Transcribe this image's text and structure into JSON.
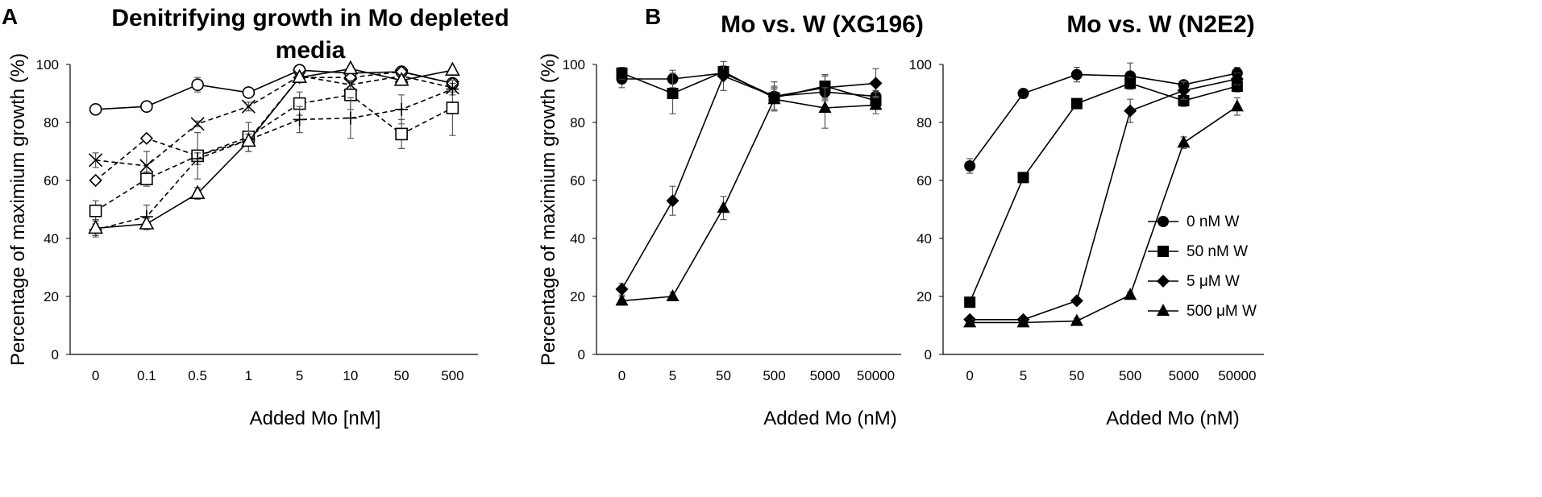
{
  "panel_labels": {
    "a": "A",
    "b": "B"
  },
  "chart_data": [
    {
      "id": "A",
      "type": "line",
      "title_lines": [
        "Denitrifying growth in Mo depleted",
        "media"
      ],
      "xlabel": "Added Mo [nM]",
      "ylabel": "Percentage of maximium growth (%)",
      "categories": [
        "0",
        "0.1",
        "0.5",
        "1",
        "5",
        "10",
        "50",
        "500"
      ],
      "ylim": [
        0,
        100
      ],
      "yticks": [
        0,
        20,
        40,
        60,
        80,
        100
      ],
      "series": [
        {
          "name": "circle",
          "marker": "circle-open",
          "line": "solid",
          "values": [
            84.5,
            85.5,
            93,
            90.3,
            98,
            97,
            97.5,
            93.5
          ],
          "errors": [
            0.5,
            1.5,
            2.5,
            0.5,
            0.5,
            1,
            1,
            1
          ]
        },
        {
          "name": "cross",
          "marker": "x",
          "line": "dashed",
          "values": [
            67,
            65,
            79.5,
            85.5,
            96,
            93,
            96,
            92
          ],
          "errors": [
            2.5,
            5,
            1,
            1.5,
            1,
            2,
            2,
            1.5
          ]
        },
        {
          "name": "diamond",
          "marker": "diamond-open",
          "line": "dashed",
          "values": [
            60,
            74.5,
            68.5,
            74,
            95.5,
            95.5,
            97.5,
            93.5
          ],
          "errors": [
            1,
            1,
            1.5,
            2,
            1,
            1.5,
            1,
            1
          ]
        },
        {
          "name": "square",
          "marker": "square-open",
          "line": "dashed",
          "values": [
            49.5,
            60.5,
            68.5,
            75,
            86.5,
            89.5,
            76,
            85
          ],
          "errors": [
            3.5,
            2.5,
            8,
            5,
            4,
            5,
            5,
            9.5
          ]
        },
        {
          "name": "plus",
          "marker": "plus",
          "line": "dashed",
          "values": [
            43,
            47.5,
            67.5,
            74,
            81,
            81.5,
            84.5,
            91.5
          ],
          "errors": [
            2,
            4,
            2,
            2,
            4.5,
            7,
            5,
            2
          ]
        },
        {
          "name": "triangle",
          "marker": "triangle-open",
          "line": "solid",
          "values": [
            43.5,
            45,
            55.5,
            73.5,
            95.5,
            98.5,
            94.5,
            98
          ],
          "errors": [
            3,
            2,
            2,
            3.5,
            1,
            1,
            1,
            1
          ]
        }
      ]
    },
    {
      "id": "B1",
      "type": "line",
      "title": "Mo vs. W (XG196)",
      "xlabel": "Added Mo (nM)",
      "ylabel": "Percentage of maximium growth (%)",
      "categories": [
        "0",
        "5",
        "50",
        "500",
        "5000",
        "50000"
      ],
      "ylim": [
        0,
        100
      ],
      "yticks": [
        0,
        20,
        40,
        60,
        80,
        100
      ],
      "series": [
        {
          "name": "0 nM W",
          "marker": "circle",
          "values": [
            95,
            95,
            97,
            89,
            90.5,
            89
          ],
          "errors": [
            3,
            3,
            2,
            2.5,
            3,
            2
          ]
        },
        {
          "name": "50 nM W",
          "marker": "square",
          "values": [
            97,
            90,
            97.5,
            88.5,
            92.5,
            87.5
          ],
          "errors": [
            2,
            7,
            2,
            4,
            4,
            3
          ]
        },
        {
          "name": "5 μM W",
          "marker": "diamond",
          "values": [
            22.5,
            53,
            96,
            89,
            92,
            93.5
          ],
          "errors": [
            2,
            5,
            5,
            5,
            4,
            5
          ]
        },
        {
          "name": "500 μM W",
          "marker": "triangle",
          "values": [
            18.5,
            20,
            50.5,
            88,
            85,
            86
          ],
          "errors": [
            1.5,
            1.5,
            4,
            4,
            7,
            3
          ]
        }
      ]
    },
    {
      "id": "B2",
      "type": "line",
      "title": "Mo vs. W (N2E2)",
      "xlabel": "Added Mo (nM)",
      "ylabel": "",
      "categories": [
        "0",
        "5",
        "50",
        "500",
        "5000",
        "50000"
      ],
      "ylim": [
        0,
        100
      ],
      "yticks": [
        0,
        20,
        40,
        60,
        80,
        100
      ],
      "legend_position": "right",
      "series": [
        {
          "name": "0 nM W",
          "marker": "circle",
          "values": [
            65,
            90,
            96.5,
            96,
            93,
            97
          ],
          "errors": [
            2.5,
            1,
            2.5,
            4.5,
            1.5,
            2
          ]
        },
        {
          "name": "50 nM W",
          "marker": "square",
          "values": [
            18,
            61,
            86.5,
            93.5,
            87.5,
            92.5
          ],
          "errors": [
            1,
            1,
            1.5,
            2,
            2,
            2
          ]
        },
        {
          "name": "5 μM W",
          "marker": "diamond",
          "values": [
            12,
            12,
            18.5,
            84,
            91,
            95
          ],
          "errors": [
            1,
            1,
            1,
            4,
            3,
            2
          ]
        },
        {
          "name": "500 μM W",
          "marker": "triangle",
          "values": [
            11,
            11,
            11.5,
            20.5,
            73,
            85.5
          ],
          "errors": [
            1,
            1,
            1,
            1,
            2,
            3
          ]
        }
      ]
    }
  ]
}
